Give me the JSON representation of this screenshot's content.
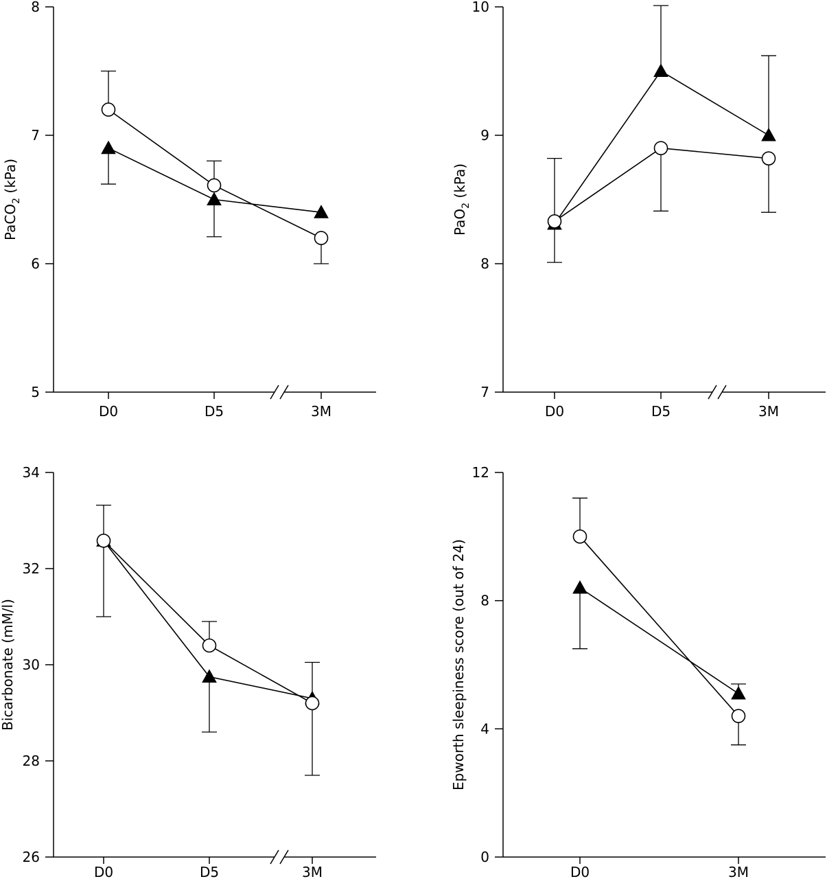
{
  "chart_data": [
    {
      "type": "line",
      "ylabel": "PaCO",
      "ylabel_sub": "2",
      "ylabel_unit": " (kPa)",
      "categories": [
        "D0",
        "D5",
        "3M"
      ],
      "axis_break": true,
      "ylim": [
        5,
        8
      ],
      "yticks": [
        5,
        6,
        7,
        8
      ],
      "series": [
        {
          "marker": "open-circle",
          "values": [
            7.2,
            6.61,
            6.2
          ],
          "err_upper": [
            7.5,
            6.8,
            null
          ],
          "err_lower": [
            null,
            null,
            6.0
          ]
        },
        {
          "marker": "filled-triangle",
          "values": [
            6.9,
            6.5,
            6.4
          ],
          "err_upper": [
            null,
            null,
            null
          ],
          "err_lower": [
            6.62,
            6.21,
            null
          ]
        }
      ]
    },
    {
      "type": "line",
      "ylabel": "PaO",
      "ylabel_sub": "2",
      "ylabel_unit": " (kPa)",
      "categories": [
        "D0",
        "D5",
        "3M"
      ],
      "axis_break": true,
      "ylim": [
        7,
        10
      ],
      "yticks": [
        7,
        8,
        9,
        10
      ],
      "series": [
        {
          "marker": "open-circle",
          "values": [
            8.33,
            8.9,
            8.82
          ],
          "err_upper": [
            8.82,
            null,
            null
          ],
          "err_lower": [
            null,
            8.41,
            8.4
          ]
        },
        {
          "marker": "filled-triangle",
          "values": [
            8.31,
            9.5,
            9.0
          ],
          "err_upper": [
            null,
            10.01,
            9.62
          ],
          "err_lower": [
            8.01,
            null,
            null
          ]
        }
      ]
    },
    {
      "type": "line",
      "ylabel": "Bicarbonate (mM/l)",
      "ylabel_sub": "",
      "ylabel_unit": "",
      "categories": [
        "D0",
        "D5",
        "3M"
      ],
      "axis_break": true,
      "ylim": [
        26,
        34
      ],
      "yticks": [
        26,
        28,
        30,
        32,
        34
      ],
      "series": [
        {
          "marker": "open-circle",
          "values": [
            32.58,
            30.4,
            29.2
          ],
          "err_upper": [
            33.32,
            30.9,
            null
          ],
          "err_lower": [
            null,
            null,
            27.7
          ]
        },
        {
          "marker": "filled-triangle",
          "values": [
            32.58,
            29.75,
            29.3
          ],
          "err_upper": [
            null,
            null,
            30.05
          ],
          "err_lower": [
            31.0,
            28.6,
            null
          ]
        }
      ]
    },
    {
      "type": "line",
      "ylabel": "Epworth sleepiness score (out of 24)",
      "ylabel_sub": "",
      "ylabel_unit": "",
      "categories": [
        "D0",
        "3M"
      ],
      "axis_break": false,
      "ylim": [
        0,
        12
      ],
      "yticks": [
        0,
        4,
        8,
        12
      ],
      "series": [
        {
          "marker": "open-circle",
          "values": [
            10.0,
            4.4
          ],
          "err_upper": [
            11.2,
            null
          ],
          "err_lower": [
            null,
            3.5
          ]
        },
        {
          "marker": "filled-triangle",
          "values": [
            8.4,
            5.1
          ],
          "err_upper": [
            null,
            5.4
          ],
          "err_lower": [
            6.5,
            null
          ]
        }
      ]
    }
  ]
}
